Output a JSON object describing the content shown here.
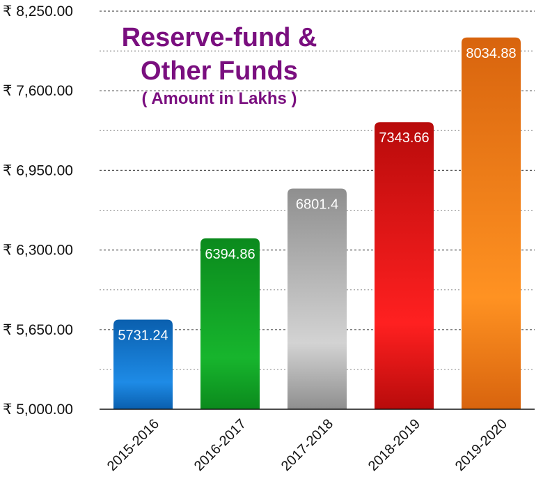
{
  "chart_data": {
    "type": "bar",
    "title_lines": [
      "Reserve-fund &",
      "Other Funds"
    ],
    "subtitle": "( Amount in Lakhs )",
    "xlabel": "",
    "ylabel": "",
    "categories": [
      "2015-2016",
      "2016-2017",
      "2017-2018",
      "2018-2019",
      "2019-2020"
    ],
    "values": [
      5731.24,
      6394.86,
      6801.4,
      7343.66,
      8034.88
    ],
    "value_labels": [
      "5731.24",
      "6394.86",
      "6801.4",
      "7343.66",
      "8034.88"
    ],
    "ylim": [
      5000,
      8250
    ],
    "yticks": [
      5000,
      5650,
      6300,
      6950,
      7600,
      8250
    ],
    "ytick_labels": [
      "₹ 5,000.00",
      "₹ 5,650.00",
      "₹ 6,300.00",
      "₹ 6,950.00",
      "₹ 7,600.00",
      "₹ 8,250.00"
    ],
    "grid": "horizontal dotted",
    "legend": "none",
    "bar_colors": [
      {
        "dark": "#0a5fae",
        "light": "#1e8be6"
      },
      {
        "dark": "#0b8a1d",
        "light": "#17b52d"
      },
      {
        "dark": "#8f8f8f",
        "light": "#d3d3d3"
      },
      {
        "dark": "#b80b0b",
        "light": "#ff2020"
      },
      {
        "dark": "#d8640e",
        "light": "#ff9222"
      }
    ]
  }
}
